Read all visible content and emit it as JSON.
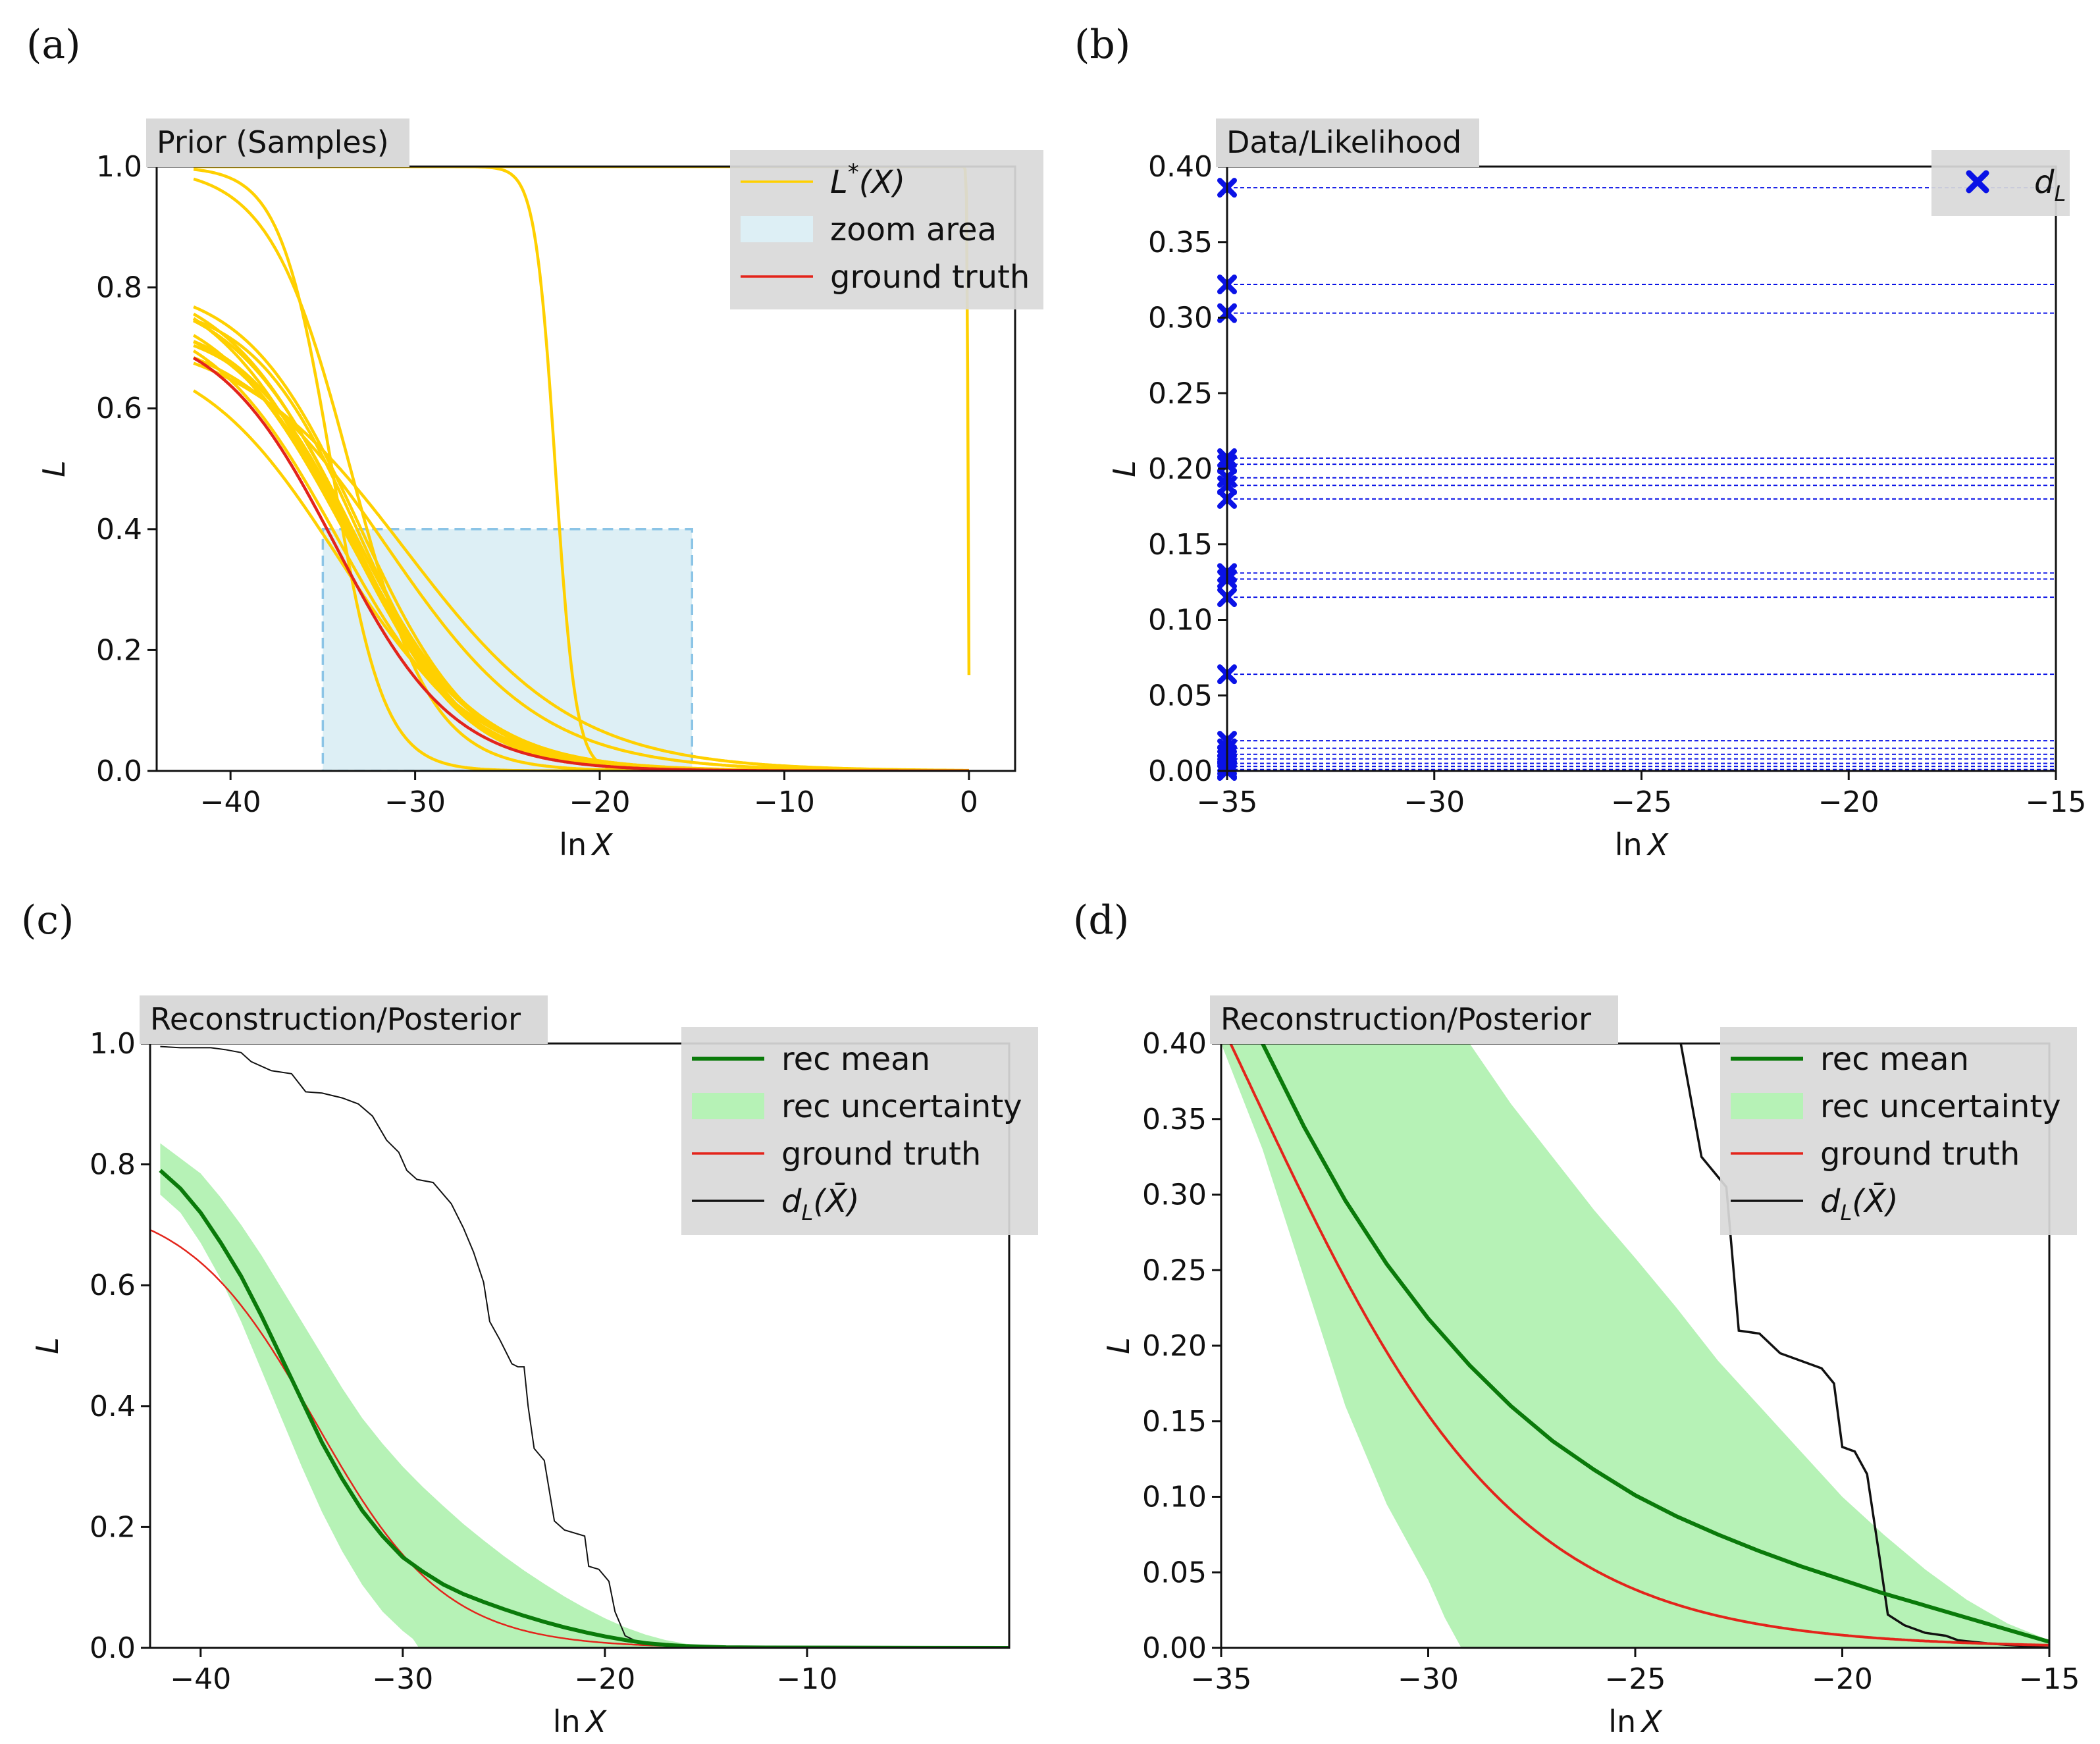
{
  "colors": {
    "gold": "#FFD000",
    "red": "#E3241B",
    "blue": "#0A12E6",
    "green": "#0A7A0A",
    "green_band": "#B6F2B6",
    "zoom_fill": "#DDEFF5",
    "zoom_edge": "#8BC4E6",
    "black": "#111111",
    "title_box": "#D9D9D9",
    "legend_box": "#D9D9D9"
  },
  "chart_data": [
    {
      "id": "a",
      "panel_label": "(a)",
      "type": "line",
      "title": "Prior (Samples)",
      "xlabel_pre": "ln",
      "xlabel_var": "X",
      "ylabel": "L",
      "xlim": [
        -44,
        2.5
      ],
      "ylim": [
        0,
        1.0
      ],
      "xticks": [
        -40,
        -30,
        -20,
        -10,
        0
      ],
      "xtick_labels": [
        "−40",
        "−30",
        "−20",
        "−10",
        "0"
      ],
      "yticks": [
        0.0,
        0.2,
        0.4,
        0.6,
        0.8,
        1.0
      ],
      "ytick_labels": [
        "0.0",
        "0.2",
        "0.4",
        "0.6",
        "0.8",
        "1.0"
      ],
      "legend": [
        {
          "kind": "line",
          "color_key": "gold",
          "label_main": "L",
          "label_sup": "*",
          "label_tail": "(X)"
        },
        {
          "kind": "patch",
          "color_key": "zoom_fill",
          "label_main": "zoom area"
        },
        {
          "kind": "line",
          "color_key": "red",
          "label_main": "ground truth"
        }
      ],
      "zoom_area": {
        "x0": -35,
        "x1": -15,
        "y0": 0,
        "y1": 0.4
      },
      "sample_curves": [
        {
          "a": 0.83,
          "mu": -34.0,
          "s": 3.6
        },
        {
          "a": 0.82,
          "mu": -33.6,
          "s": 3.4
        },
        {
          "a": 0.81,
          "mu": -33.0,
          "s": 3.1
        },
        {
          "a": 0.8,
          "mu": -33.4,
          "s": 3.3
        },
        {
          "a": 0.79,
          "mu": -33.8,
          "s": 3.5
        },
        {
          "a": 0.78,
          "mu": -33.0,
          "s": 2.9
        },
        {
          "a": 0.77,
          "mu": -34.2,
          "s": 3.5
        },
        {
          "a": 0.76,
          "mu": -33.5,
          "s": 3.2
        },
        {
          "a": 0.75,
          "mu": -33.3,
          "s": 3.0
        },
        {
          "a": 0.74,
          "mu": -33.1,
          "s": 3.0
        },
        {
          "a": 0.71,
          "mu": -34.2,
          "s": 3.8
        },
        {
          "a": 0.74,
          "mu": -31.5,
          "s": 4.2
        },
        {
          "a": 0.73,
          "mu": -30.5,
          "s": 4.6
        },
        {
          "a": 1.0,
          "mu": -34.5,
          "s": 1.4
        },
        {
          "a": 1.0,
          "mu": -33.5,
          "s": 2.2
        },
        {
          "a": 1.0,
          "mu": -22.4,
          "s": 0.55
        },
        {
          "a": 1.0,
          "mu": -0.05,
          "s": 0.03
        }
      ],
      "ground_truth": {
        "a": 0.745,
        "mu": -34.3,
        "s": 3.2
      }
    },
    {
      "id": "b",
      "panel_label": "(b)",
      "type": "scatter",
      "title": "Data/Likelihood",
      "xlabel_pre": "ln",
      "xlabel_var": "X",
      "ylabel": "L",
      "xlim": [
        -35,
        -15
      ],
      "ylim": [
        0,
        0.4
      ],
      "xticks": [
        -35,
        -30,
        -25,
        -20,
        -15
      ],
      "xtick_labels": [
        "−35",
        "−30",
        "−25",
        "−20",
        "−15"
      ],
      "yticks": [
        0.0,
        0.05,
        0.1,
        0.15,
        0.2,
        0.25,
        0.3,
        0.35,
        0.4
      ],
      "ytick_labels": [
        "0.00",
        "0.05",
        "0.10",
        "0.15",
        "0.20",
        "0.25",
        "0.30",
        "0.35",
        "0.40"
      ],
      "legend": [
        {
          "kind": "marker",
          "color_key": "blue",
          "label_main": "d",
          "label_sub": "L"
        }
      ],
      "x_value": -35,
      "values": [
        0.386,
        0.322,
        0.303,
        0.207,
        0.203,
        0.194,
        0.189,
        0.18,
        0.131,
        0.127,
        0.115,
        0.064,
        0.02,
        0.015,
        0.011,
        0.008,
        0.005,
        0.003,
        0.001,
        0.0
      ]
    },
    {
      "id": "c",
      "panel_label": "(c)",
      "type": "line",
      "title": "Reconstruction/Posterior",
      "xlabel_pre": "ln",
      "xlabel_var": "X",
      "ylabel": "L",
      "xlim": [
        -42.5,
        0
      ],
      "ylim": [
        0,
        1.0
      ],
      "xticks": [
        -40,
        -30,
        -20,
        -10
      ],
      "xtick_labels": [
        "−40",
        "−30",
        "−20",
        "−10"
      ],
      "yticks": [
        0.0,
        0.2,
        0.4,
        0.6,
        0.8,
        1.0
      ],
      "ytick_labels": [
        "0.0",
        "0.2",
        "0.4",
        "0.6",
        "0.8",
        "1.0"
      ],
      "legend": [
        {
          "kind": "line",
          "color_key": "green",
          "label_main": "rec mean"
        },
        {
          "kind": "patch",
          "color_key": "green_band",
          "label_main": "rec uncertainty"
        },
        {
          "kind": "line",
          "color_key": "red",
          "label_main": "ground truth"
        },
        {
          "kind": "line",
          "color_key": "black",
          "label_main": "d",
          "label_sub": "L",
          "label_tail": "(X̄)"
        }
      ],
      "series": {
        "ground_truth": {
          "a": 0.745,
          "mu": -34.3,
          "s": 3.2
        },
        "rec_mean": [
          [
            -42,
            0.79
          ],
          [
            -41,
            0.76
          ],
          [
            -40,
            0.72
          ],
          [
            -39,
            0.67
          ],
          [
            -38,
            0.615
          ],
          [
            -37,
            0.55
          ],
          [
            -36,
            0.48
          ],
          [
            -35,
            0.41
          ],
          [
            -34,
            0.34
          ],
          [
            -33,
            0.28
          ],
          [
            -32,
            0.227
          ],
          [
            -31,
            0.185
          ],
          [
            -30,
            0.15
          ],
          [
            -29,
            0.126
          ],
          [
            -28,
            0.105
          ],
          [
            -27,
            0.089
          ],
          [
            -26,
            0.076
          ],
          [
            -25,
            0.064
          ],
          [
            -24,
            0.053
          ],
          [
            -23,
            0.043
          ],
          [
            -22,
            0.034
          ],
          [
            -21,
            0.026
          ],
          [
            -20,
            0.019
          ],
          [
            -19,
            0.013
          ],
          [
            -18,
            0.008
          ],
          [
            -17,
            0.005
          ],
          [
            -16,
            0.003
          ],
          [
            -15,
            0.002
          ],
          [
            -14,
            0.001
          ],
          [
            -12,
            0.0005
          ],
          [
            0,
            0.0
          ]
        ],
        "band_upper": [
          [
            -42,
            0.835
          ],
          [
            -41,
            0.81
          ],
          [
            -40,
            0.785
          ],
          [
            -39,
            0.745
          ],
          [
            -38,
            0.7
          ],
          [
            -37,
            0.65
          ],
          [
            -36,
            0.595
          ],
          [
            -35,
            0.54
          ],
          [
            -34,
            0.485
          ],
          [
            -33,
            0.43
          ],
          [
            -32,
            0.38
          ],
          [
            -31,
            0.338
          ],
          [
            -30,
            0.3
          ],
          [
            -29,
            0.266
          ],
          [
            -28,
            0.235
          ],
          [
            -27,
            0.205
          ],
          [
            -26,
            0.178
          ],
          [
            -25,
            0.152
          ],
          [
            -24,
            0.128
          ],
          [
            -23,
            0.106
          ],
          [
            -22,
            0.085
          ],
          [
            -21,
            0.066
          ],
          [
            -20,
            0.049
          ],
          [
            -19,
            0.034
          ],
          [
            -18,
            0.022
          ],
          [
            -17,
            0.013
          ],
          [
            -16,
            0.007
          ],
          [
            -15,
            0.003
          ],
          [
            -14,
            0.0015
          ],
          [
            -12,
            0.0005
          ],
          [
            0,
            0.0
          ]
        ],
        "band_lower": [
          [
            -42,
            0.75
          ],
          [
            -41,
            0.72
          ],
          [
            -40,
            0.67
          ],
          [
            -39,
            0.61
          ],
          [
            -38,
            0.54
          ],
          [
            -37,
            0.46
          ],
          [
            -36,
            0.38
          ],
          [
            -35,
            0.3
          ],
          [
            -34,
            0.225
          ],
          [
            -33,
            0.16
          ],
          [
            -32,
            0.104
          ],
          [
            -31,
            0.06
          ],
          [
            -30,
            0.028
          ],
          [
            -29.5,
            0.015
          ],
          [
            -29.2,
            0.0
          ],
          [
            0,
            0.0
          ]
        ],
        "d_L": [
          [
            -42,
            0.995
          ],
          [
            -41,
            0.993
          ],
          [
            -39.5,
            0.993
          ],
          [
            -38.8,
            0.99
          ],
          [
            -38,
            0.985
          ],
          [
            -37.5,
            0.97
          ],
          [
            -36.5,
            0.955
          ],
          [
            -35.5,
            0.95
          ],
          [
            -34.8,
            0.92
          ],
          [
            -34,
            0.918
          ],
          [
            -33,
            0.91
          ],
          [
            -32.2,
            0.9
          ],
          [
            -31.5,
            0.88
          ],
          [
            -30.8,
            0.84
          ],
          [
            -30.2,
            0.82
          ],
          [
            -29.8,
            0.79
          ],
          [
            -29.3,
            0.775
          ],
          [
            -28.5,
            0.77
          ],
          [
            -27.6,
            0.735
          ],
          [
            -27,
            0.695
          ],
          [
            -26.5,
            0.655
          ],
          [
            -26,
            0.605
          ],
          [
            -25.7,
            0.54
          ],
          [
            -25.2,
            0.51
          ],
          [
            -24.6,
            0.47
          ],
          [
            -24.3,
            0.465
          ],
          [
            -24,
            0.465
          ],
          [
            -23.8,
            0.4
          ],
          [
            -23.5,
            0.33
          ],
          [
            -23,
            0.31
          ],
          [
            -22.5,
            0.21
          ],
          [
            -22,
            0.195
          ],
          [
            -21,
            0.185
          ],
          [
            -20.8,
            0.135
          ],
          [
            -20.3,
            0.13
          ],
          [
            -19.8,
            0.11
          ],
          [
            -19.5,
            0.06
          ],
          [
            -19,
            0.02
          ],
          [
            -18.5,
            0.012
          ],
          [
            -17.5,
            0.008
          ],
          [
            -17,
            0.004
          ],
          [
            -16,
            0.002
          ],
          [
            -15,
            0.0
          ],
          [
            0,
            0.0
          ]
        ]
      }
    },
    {
      "id": "d",
      "panel_label": "(d)",
      "type": "line",
      "title": "Reconstruction/Posterior",
      "xlabel_pre": "ln",
      "xlabel_var": "X",
      "ylabel": "L",
      "xlim": [
        -35,
        -15
      ],
      "ylim": [
        0,
        0.4
      ],
      "xticks": [
        -35,
        -30,
        -25,
        -20,
        -15
      ],
      "xtick_labels": [
        "−35",
        "−30",
        "−25",
        "−20",
        "−15"
      ],
      "yticks": [
        0.0,
        0.05,
        0.1,
        0.15,
        0.2,
        0.25,
        0.3,
        0.35,
        0.4
      ],
      "ytick_labels": [
        "0.00",
        "0.05",
        "0.10",
        "0.15",
        "0.20",
        "0.25",
        "0.30",
        "0.35",
        "0.40"
      ],
      "legend": [
        {
          "kind": "line",
          "color_key": "green",
          "label_main": "rec mean"
        },
        {
          "kind": "patch",
          "color_key": "green_band",
          "label_main": "rec uncertainty"
        },
        {
          "kind": "line",
          "color_key": "red",
          "label_main": "ground truth"
        },
        {
          "kind": "line",
          "color_key": "black",
          "label_main": "d",
          "label_sub": "L",
          "label_tail": "(X̄)"
        }
      ],
      "series": {
        "ground_truth": {
          "a": 0.745,
          "mu": -34.3,
          "s": 3.2
        },
        "rec_mean": [
          [
            -34,
            0.4
          ],
          [
            -33,
            0.345
          ],
          [
            -32,
            0.296
          ],
          [
            -31,
            0.254
          ],
          [
            -30,
            0.218
          ],
          [
            -29,
            0.187
          ],
          [
            -28,
            0.16
          ],
          [
            -27,
            0.137
          ],
          [
            -26,
            0.118
          ],
          [
            -25,
            0.101
          ],
          [
            -24,
            0.087
          ],
          [
            -23,
            0.075
          ],
          [
            -22,
            0.064
          ],
          [
            -21,
            0.054
          ],
          [
            -20,
            0.045
          ],
          [
            -19,
            0.036
          ],
          [
            -18,
            0.028
          ],
          [
            -17,
            0.02
          ],
          [
            -16,
            0.012
          ],
          [
            -15,
            0.004
          ]
        ],
        "band_upper": [
          [
            -35,
            0.4
          ],
          [
            -29,
            0.4
          ],
          [
            -28,
            0.36
          ],
          [
            -27,
            0.325
          ],
          [
            -26,
            0.29
          ],
          [
            -25,
            0.258
          ],
          [
            -24,
            0.225
          ],
          [
            -23,
            0.19
          ],
          [
            -22,
            0.16
          ],
          [
            -21,
            0.13
          ],
          [
            -20,
            0.1
          ],
          [
            -19,
            0.075
          ],
          [
            -18,
            0.052
          ],
          [
            -17,
            0.032
          ],
          [
            -16,
            0.016
          ],
          [
            -15,
            0.005
          ]
        ],
        "band_lower": [
          [
            -35,
            0.4
          ],
          [
            -34,
            0.33
          ],
          [
            -33,
            0.245
          ],
          [
            -32,
            0.16
          ],
          [
            -31,
            0.095
          ],
          [
            -30,
            0.045
          ],
          [
            -29.6,
            0.02
          ],
          [
            -29.2,
            0.0
          ],
          [
            -15,
            0.0
          ]
        ],
        "d_L": [
          [
            -23.9,
            0.4
          ],
          [
            -23.7,
            0.37
          ],
          [
            -23.4,
            0.325
          ],
          [
            -22.8,
            0.305
          ],
          [
            -22.5,
            0.21
          ],
          [
            -22,
            0.208
          ],
          [
            -21.5,
            0.195
          ],
          [
            -20.5,
            0.185
          ],
          [
            -20.2,
            0.175
          ],
          [
            -20,
            0.133
          ],
          [
            -19.7,
            0.13
          ],
          [
            -19.4,
            0.115
          ],
          [
            -19.1,
            0.06
          ],
          [
            -18.9,
            0.022
          ],
          [
            -18.5,
            0.015
          ],
          [
            -18,
            0.01
          ],
          [
            -17.5,
            0.008
          ],
          [
            -17.2,
            0.005
          ],
          [
            -16.5,
            0.003
          ],
          [
            -15.5,
            0.001
          ],
          [
            -15,
            0.0
          ]
        ]
      }
    }
  ]
}
